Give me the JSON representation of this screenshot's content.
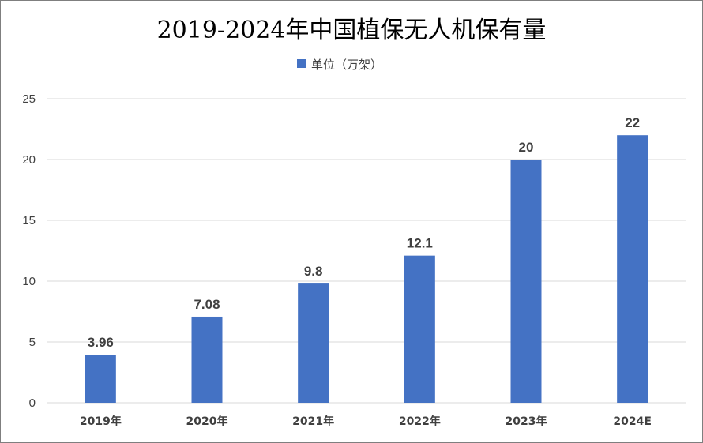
{
  "chart_data": {
    "type": "bar",
    "title": "2019-2024年中国植保无人机保有量",
    "xlabel": "",
    "ylabel": "",
    "categories": [
      "2019年",
      "2020年",
      "2021年",
      "2022年",
      "2023年",
      "2024E"
    ],
    "series": [
      {
        "name": "单位（万架）",
        "values": [
          3.96,
          7.08,
          9.8,
          12.1,
          20,
          22
        ],
        "labels": [
          "3.96",
          "7.08",
          "9.8",
          "12.1",
          "20",
          "22"
        ],
        "color": "#4472c4"
      }
    ],
    "ylim": [
      0,
      25
    ],
    "yticks": [
      "0",
      "5",
      "10",
      "15",
      "20",
      "25"
    ],
    "grid": true,
    "legend_position": "top"
  }
}
